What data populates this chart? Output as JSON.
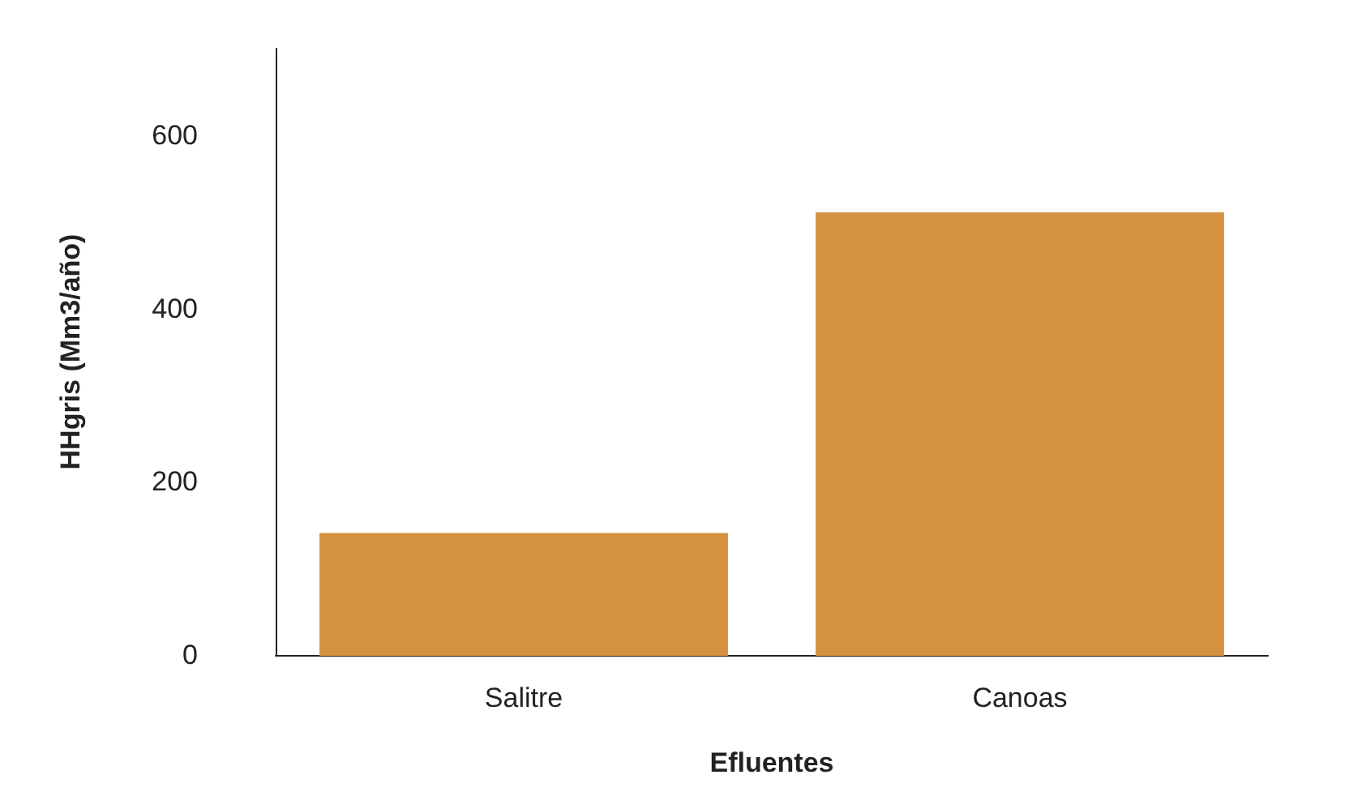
{
  "chart_data": {
    "type": "bar",
    "xlabel": "Efluentes",
    "ylabel": "HHgris (Mm3/año)",
    "categories": [
      "Salitre",
      "Canoas"
    ],
    "values": [
      140,
      510
    ],
    "color": "#d4913f",
    "ylim": [
      0,
      700
    ],
    "yticks": [
      0,
      200,
      400,
      600
    ],
    "grid": false
  }
}
